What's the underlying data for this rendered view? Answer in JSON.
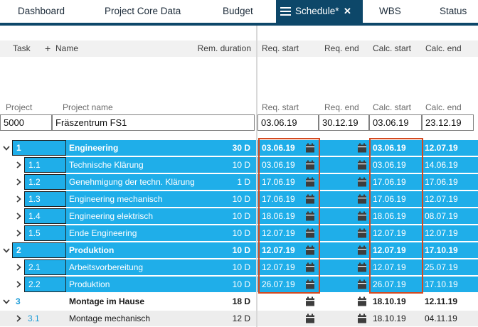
{
  "colors": {
    "selection_cyan": "#1FAEE9",
    "active_tab_navy": "#0D4769",
    "annotation_red": "#D4491F",
    "alt_row_gray": "#EDEDED",
    "column_header_bg": "#F1F1F1",
    "task_number_blue": "#1E9CD7"
  },
  "icons": {
    "menu": "hamburger-icon",
    "close": "close-icon",
    "expanded": "chevron-down-icon",
    "collapsed": "chevron-right-icon",
    "date_picker": "calendar-icon"
  },
  "tabs": {
    "dashboard": "Dashboard",
    "project_core_data": "Project Core Data",
    "budget": "Budget",
    "schedule": "Schedule*",
    "wbs": "WBS",
    "status": "Status",
    "close_glyph": "✕"
  },
  "table_header": {
    "task": "Task",
    "add": "+",
    "name": "Name",
    "rem_duration": "Rem. duration",
    "req_start": "Req. start",
    "req_end": "Req. end",
    "calc_start": "Calc. start",
    "calc_end": "Calc. end"
  },
  "project_header": {
    "project": "Project",
    "project_name": "Project name",
    "req_start": "Req. start",
    "req_end": "Req. end",
    "calc_start": "Calc. start",
    "calc_end": "Calc. end"
  },
  "project_row": {
    "id": "5000",
    "name": "Fräszentrum FS1",
    "req_start": "03.06.19",
    "req_end": "30.12.19",
    "calc_start": "03.06.19",
    "calc_end": "23.12.19"
  },
  "rows": [
    {
      "num": "1",
      "name": "Engineering",
      "duration": "30 D",
      "level": 0,
      "expanded": true,
      "style": "sel",
      "summary": true,
      "req_start": "03.06.19",
      "req_end": "",
      "calc_start": "03.06.19",
      "calc_end": "12.07.19"
    },
    {
      "num": "1.1",
      "name": "Technische Klärung",
      "duration": "10 D",
      "level": 1,
      "expanded": false,
      "style": "sel",
      "summary": false,
      "req_start": "03.06.19",
      "req_end": "",
      "calc_start": "03.06.19",
      "calc_end": "14.06.19"
    },
    {
      "num": "1.2",
      "name": "Genehmigung der techn. Klärung",
      "duration": "1 D",
      "level": 1,
      "expanded": false,
      "style": "sel",
      "summary": false,
      "req_start": "17.06.19",
      "req_end": "",
      "calc_start": "17.06.19",
      "calc_end": "17.06.19"
    },
    {
      "num": "1.3",
      "name": "Engineering mechanisch",
      "duration": "10 D",
      "level": 1,
      "expanded": false,
      "style": "sel",
      "summary": false,
      "req_start": "17.06.19",
      "req_end": "",
      "calc_start": "17.06.19",
      "calc_end": "12.07.19"
    },
    {
      "num": "1.4",
      "name": "Engineering elektrisch",
      "duration": "10 D",
      "level": 1,
      "expanded": false,
      "style": "sel",
      "summary": false,
      "req_start": "18.06.19",
      "req_end": "",
      "calc_start": "18.06.19",
      "calc_end": "08.07.19"
    },
    {
      "num": "1.5",
      "name": "Ende Engineering",
      "duration": "10 D",
      "level": 1,
      "expanded": false,
      "style": "sel",
      "summary": false,
      "req_start": "12.07.19",
      "req_end": "",
      "calc_start": "12.07.19",
      "calc_end": "12.07.19"
    },
    {
      "num": "2",
      "name": "Produktion",
      "duration": "10 D",
      "level": 0,
      "expanded": true,
      "style": "sel",
      "summary": true,
      "req_start": "12.07.19",
      "req_end": "",
      "calc_start": "12.07.19",
      "calc_end": "17.10.19"
    },
    {
      "num": "2.1",
      "name": "Arbeitsvorbereitung",
      "duration": "10 D",
      "level": 1,
      "expanded": false,
      "style": "sel",
      "summary": false,
      "req_start": "12.07.19",
      "req_end": "",
      "calc_start": "12.07.19",
      "calc_end": "25.07.19"
    },
    {
      "num": "2.2",
      "name": "Produktion",
      "duration": "10 D",
      "level": 1,
      "expanded": false,
      "style": "sel",
      "summary": false,
      "req_start": "26.07.19",
      "req_end": "",
      "calc_start": "26.07.19",
      "calc_end": "17.10.19"
    },
    {
      "num": "3",
      "name": "Montage im Hause",
      "duration": "18 D",
      "level": 0,
      "expanded": true,
      "style": "white",
      "summary": true,
      "req_start": "",
      "req_end": "",
      "calc_start": "18.10.19",
      "calc_end": "12.11.19"
    },
    {
      "num": "3.1",
      "name": "Montage mechanisch",
      "duration": "12 D",
      "level": 1,
      "expanded": false,
      "style": "gray",
      "summary": false,
      "req_start": "",
      "req_end": "",
      "calc_start": "18.10.19",
      "calc_end": "04.11.19"
    }
  ]
}
